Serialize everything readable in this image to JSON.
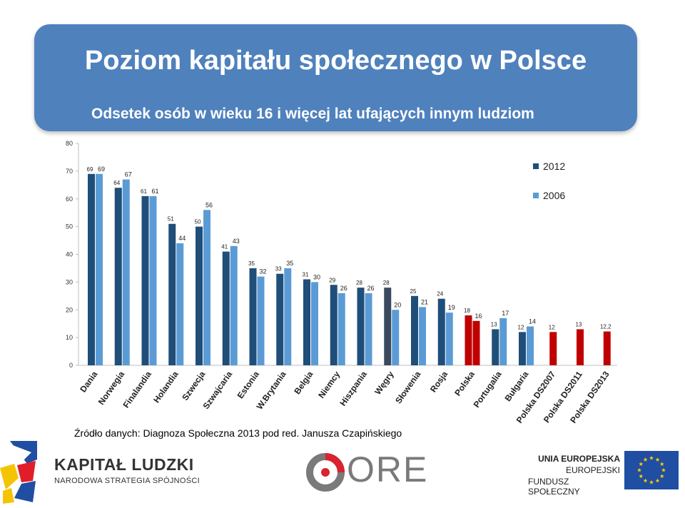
{
  "header": {
    "title": "Poziom kapitału społecznego w Polsce",
    "subtitle": "Odsetek osób w wieku 16 i więcej lat ufających innym ludziom"
  },
  "source": "Źródło danych: Diagnoza Społeczna 2013 pod red. Janusza Czapińskiego",
  "logos": {
    "kapital_title": "KAPITAŁ LUDZKI",
    "kapital_sub": "NARODOWA STRATEGIA SPÓJNOŚCI",
    "ore": "ORE",
    "ue_line1": "UNIA EUROPEJSKA",
    "ue_line2": "EUROPEJSKI",
    "ue_line3": "FUNDUSZ SPOŁECZNY"
  },
  "colors": {
    "banner": "#4f81bd",
    "s2012": "#1f4e79",
    "s2006": "#5b9bd5",
    "wegry2012": "#3a4a5e",
    "polska": "#c00000"
  },
  "chart_data": {
    "type": "bar",
    "ylim": [
      0,
      80
    ],
    "yticks": [
      0,
      10,
      20,
      30,
      40,
      50,
      60,
      70,
      80
    ],
    "legend_position": "top-right",
    "categories": [
      "Dania",
      "Norwegia",
      "Finalandia",
      "Holandia",
      "Szwecja",
      "Szwajcaria",
      "Estonia",
      "W.Brytania",
      "Belgia",
      "Niemcy",
      "Hiszpania",
      "Węgry",
      "Słowenia",
      "Rosja",
      "Polska",
      "Portugalia",
      "Bułgaria",
      "Polska DS2007",
      "Polska DS2011",
      "Polska DS2013"
    ],
    "series": [
      {
        "name": "2012",
        "values": [
          69,
          64,
          61,
          51,
          50,
          41,
          35,
          33,
          31,
          29,
          28,
          28,
          25,
          24,
          18,
          13,
          12,
          12,
          13,
          12.2
        ],
        "labels": [
          "69",
          "64",
          "61",
          "51",
          "50",
          "41",
          "35",
          "33",
          "31",
          "29",
          "28",
          "28",
          "25",
          "24",
          "18",
          "13",
          "12",
          "12",
          "13",
          "12,2"
        ]
      },
      {
        "name": "2006",
        "values": [
          69,
          67,
          61,
          44,
          56,
          43,
          32,
          35,
          30,
          26,
          26,
          20,
          21,
          19,
          16,
          17,
          14,
          null,
          null,
          null
        ],
        "labels": [
          "69",
          "67",
          "61",
          "44",
          "56",
          "43",
          "32",
          "35",
          "30",
          "26",
          "26",
          "20",
          "21",
          "19",
          "16",
          "17",
          "14",
          "",
          "",
          ""
        ]
      }
    ]
  }
}
